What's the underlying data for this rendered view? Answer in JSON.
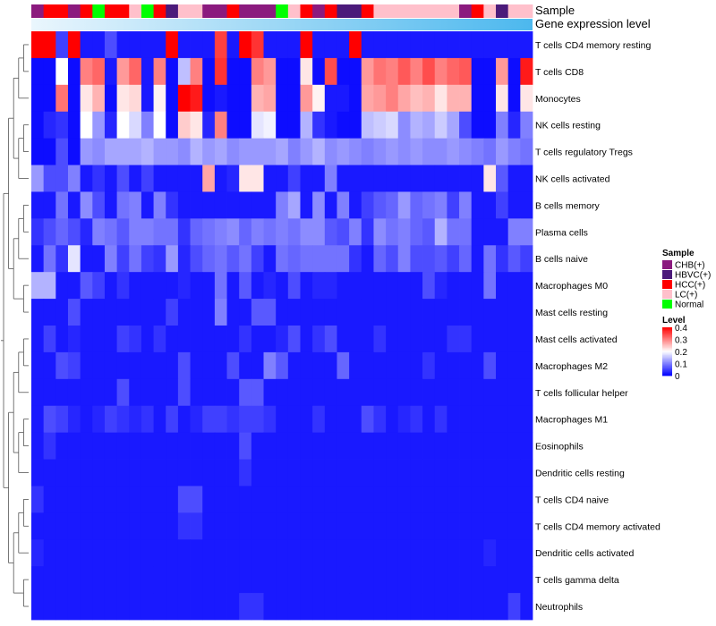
{
  "chart_data": {
    "type": "heatmap",
    "title": "",
    "annotation_tracks": [
      "Sample",
      "Gene expression level"
    ],
    "sample_groups": [
      "CHB(+)",
      "HBVC(+)",
      "HCC(+)",
      "LC(+)",
      "Normal"
    ],
    "group_colors": {
      "CHB(+)": "#8B1A7E",
      "HBVC(+)": "#4B1A7A",
      "HCC(+)": "#FF0000",
      "LC(+)": "#FFC0CB",
      "Normal": "#00FF00"
    },
    "sample_annotation": [
      "CHB(+)",
      "HCC(+)",
      "HCC(+)",
      "CHB(+)",
      "HCC(+)",
      "Normal",
      "HCC(+)",
      "HCC(+)",
      "LC(+)",
      "Normal",
      "HCC(+)",
      "HBVC(+)",
      "LC(+)",
      "LC(+)",
      "CHB(+)",
      "CHB(+)",
      "HCC(+)",
      "CHB(+)",
      "CHB(+)",
      "CHB(+)",
      "Normal",
      "LC(+)",
      "HCC(+)",
      "CHB(+)",
      "HCC(+)",
      "HBVC(+)",
      "HBVC(+)",
      "HCC(+)",
      "LC(+)",
      "LC(+)",
      "LC(+)",
      "LC(+)",
      "LC(+)",
      "LC(+)",
      "LC(+)",
      "CHB(+)",
      "HCC(+)",
      "LC(+)",
      "HBVC(+)",
      "LC(+)",
      "LC(+)"
    ],
    "rows": [
      "T cells CD4 memory resting",
      "T cells CD8",
      "Monocytes",
      "NK cells resting",
      "T cells regulatory  Tregs",
      "NK cells activated",
      "B cells memory",
      "Plasma cells",
      "B cells naive",
      "Macrophages M0",
      "Mast cells resting",
      "Mast cells activated",
      "Macrophages M2",
      "T cells follicular helper",
      "Macrophages M1",
      "Eosinophils",
      "Dendritic cells resting",
      "T cells CD4 naive",
      "T cells CD4 memory activated",
      "Dendritic cells activated",
      "T cells gamma delta",
      "Neutrophils"
    ],
    "values": [
      [
        0.42,
        0.42,
        0.05,
        0.43,
        0.02,
        0.02,
        0.06,
        0.02,
        0.02,
        0.02,
        0.02,
        0.43,
        0.02,
        0.02,
        0.02,
        0.35,
        0.02,
        0.43,
        0.36,
        0.02,
        0.02,
        0.02,
        0.43,
        0.02,
        0.02,
        0.02,
        0.43,
        0.02,
        0.02,
        0.02,
        0.02,
        0.02,
        0.02,
        0.02,
        0.02,
        0.02,
        0.02,
        0.02,
        0.02,
        0.02,
        0.02
      ],
      [
        0.01,
        0.01,
        0.2,
        0.01,
        0.3,
        0.32,
        0.02,
        0.28,
        0.32,
        0.02,
        0.3,
        0.01,
        0.15,
        0.3,
        0.01,
        0.36,
        0.01,
        0.01,
        0.3,
        0.28,
        0.01,
        0.01,
        0.22,
        0.01,
        0.34,
        0.01,
        0.01,
        0.28,
        0.31,
        0.3,
        0.33,
        0.3,
        0.34,
        0.3,
        0.32,
        0.33,
        0.01,
        0.01,
        0.28,
        0.01,
        0.38
      ],
      [
        0.01,
        0.01,
        0.31,
        0.01,
        0.22,
        0.26,
        0.01,
        0.22,
        0.23,
        0.02,
        0.21,
        0.01,
        0.42,
        0.38,
        0.01,
        0.02,
        0.01,
        0.01,
        0.26,
        0.27,
        0.01,
        0.01,
        0.28,
        0.21,
        0.02,
        0.02,
        0.01,
        0.27,
        0.28,
        0.3,
        0.27,
        0.25,
        0.26,
        0.22,
        0.26,
        0.26,
        0.01,
        0.01,
        0.22,
        0.01,
        0.22
      ],
      [
        0.01,
        0.03,
        0.04,
        0.01,
        0.2,
        0.12,
        0.03,
        0.2,
        0.17,
        0.1,
        0.2,
        0.01,
        0.24,
        0.22,
        0.03,
        0.3,
        0.01,
        0.01,
        0.18,
        0.19,
        0.01,
        0.01,
        0.14,
        0.04,
        0.02,
        0.01,
        0.01,
        0.15,
        0.16,
        0.17,
        0.11,
        0.14,
        0.13,
        0.16,
        0.13,
        0.06,
        0.01,
        0.01,
        0.1,
        0.03,
        0.1
      ],
      [
        0.01,
        0.01,
        0.06,
        0.01,
        0.12,
        0.11,
        0.13,
        0.13,
        0.13,
        0.14,
        0.12,
        0.12,
        0.11,
        0.14,
        0.12,
        0.13,
        0.11,
        0.12,
        0.12,
        0.12,
        0.13,
        0.1,
        0.12,
        0.14,
        0.11,
        0.12,
        0.11,
        0.1,
        0.11,
        0.12,
        0.11,
        0.12,
        0.11,
        0.11,
        0.12,
        0.11,
        0.1,
        0.09,
        0.12,
        0.1,
        0.09
      ],
      [
        0.12,
        0.06,
        0.06,
        0.1,
        0.02,
        0.04,
        0.02,
        0.06,
        0.02,
        0.05,
        0.02,
        0.02,
        0.02,
        0.02,
        0.27,
        0.02,
        0.03,
        0.22,
        0.22,
        0.02,
        0.02,
        0.05,
        0.02,
        0.02,
        0.1,
        0.02,
        0.02,
        0.02,
        0.02,
        0.02,
        0.02,
        0.02,
        0.02,
        0.02,
        0.02,
        0.02,
        0.02,
        0.22,
        0.07,
        0.02,
        0.02
      ],
      [
        0.02,
        0.02,
        0.09,
        0.02,
        0.11,
        0.06,
        0.02,
        0.09,
        0.1,
        0.02,
        0.1,
        0.04,
        0.02,
        0.02,
        0.02,
        0.02,
        0.02,
        0.02,
        0.02,
        0.02,
        0.1,
        0.13,
        0.02,
        0.11,
        0.02,
        0.1,
        0.02,
        0.05,
        0.07,
        0.08,
        0.12,
        0.08,
        0.09,
        0.1,
        0.05,
        0.1,
        0.02,
        0.02,
        0.05,
        0.02,
        0.02
      ],
      [
        0.04,
        0.06,
        0.08,
        0.06,
        0.03,
        0.1,
        0.09,
        0.07,
        0.1,
        0.1,
        0.09,
        0.09,
        0.04,
        0.08,
        0.09,
        0.1,
        0.11,
        0.08,
        0.1,
        0.09,
        0.1,
        0.09,
        0.11,
        0.11,
        0.07,
        0.06,
        0.1,
        0.04,
        0.11,
        0.09,
        0.1,
        0.08,
        0.07,
        0.14,
        0.09,
        0.09,
        0.02,
        0.02,
        0.02,
        0.1,
        0.1
      ],
      [
        0.02,
        0.09,
        0.04,
        0.18,
        0.02,
        0.02,
        0.1,
        0.05,
        0.09,
        0.05,
        0.04,
        0.12,
        0.03,
        0.06,
        0.08,
        0.09,
        0.07,
        0.09,
        0.05,
        0.02,
        0.09,
        0.08,
        0.09,
        0.09,
        0.09,
        0.09,
        0.04,
        0.02,
        0.08,
        0.06,
        0.1,
        0.06,
        0.06,
        0.07,
        0.05,
        0.08,
        0.02,
        0.09,
        0.04,
        0.07,
        0.05
      ],
      [
        0.14,
        0.14,
        0.02,
        0.02,
        0.07,
        0.05,
        0.02,
        0.04,
        0.02,
        0.02,
        0.02,
        0.02,
        0.03,
        0.02,
        0.02,
        0.09,
        0.02,
        0.07,
        0.02,
        0.03,
        0.02,
        0.06,
        0.02,
        0.03,
        0.03,
        0.02,
        0.02,
        0.02,
        0.02,
        0.02,
        0.02,
        0.02,
        0.06,
        0.03,
        0.02,
        0.02,
        0.02,
        0.09,
        0.02,
        0.02,
        0.02
      ],
      [
        0.02,
        0.02,
        0.02,
        0.06,
        0.02,
        0.02,
        0.02,
        0.02,
        0.02,
        0.02,
        0.02,
        0.05,
        0.02,
        0.02,
        0.02,
        0.1,
        0.02,
        0.02,
        0.07,
        0.07,
        0.02,
        0.02,
        0.02,
        0.02,
        0.02,
        0.02,
        0.02,
        0.02,
        0.02,
        0.02,
        0.02,
        0.02,
        0.02,
        0.02,
        0.02,
        0.02,
        0.02,
        0.02,
        0.02,
        0.02,
        0.02
      ],
      [
        0.02,
        0.05,
        0.02,
        0.03,
        0.02,
        0.02,
        0.02,
        0.05,
        0.04,
        0.02,
        0.04,
        0.02,
        0.02,
        0.02,
        0.02,
        0.02,
        0.02,
        0.04,
        0.02,
        0.02,
        0.03,
        0.06,
        0.02,
        0.04,
        0.06,
        0.02,
        0.02,
        0.02,
        0.04,
        0.02,
        0.02,
        0.02,
        0.02,
        0.02,
        0.04,
        0.04,
        0.02,
        0.02,
        0.02,
        0.02,
        0.02
      ],
      [
        0.02,
        0.02,
        0.06,
        0.05,
        0.02,
        0.02,
        0.02,
        0.02,
        0.02,
        0.02,
        0.02,
        0.02,
        0.06,
        0.02,
        0.02,
        0.02,
        0.06,
        0.02,
        0.02,
        0.1,
        0.07,
        0.02,
        0.02,
        0.02,
        0.02,
        0.08,
        0.02,
        0.02,
        0.02,
        0.02,
        0.02,
        0.02,
        0.04,
        0.02,
        0.02,
        0.02,
        0.02,
        0.06,
        0.02,
        0.02,
        0.02
      ],
      [
        0.02,
        0.02,
        0.02,
        0.02,
        0.02,
        0.02,
        0.02,
        0.06,
        0.02,
        0.02,
        0.02,
        0.02,
        0.06,
        0.02,
        0.02,
        0.02,
        0.02,
        0.07,
        0.07,
        0.02,
        0.02,
        0.02,
        0.02,
        0.02,
        0.02,
        0.02,
        0.02,
        0.02,
        0.02,
        0.02,
        0.02,
        0.02,
        0.02,
        0.02,
        0.02,
        0.02,
        0.02,
        0.02,
        0.02,
        0.02,
        0.02
      ],
      [
        0.02,
        0.06,
        0.05,
        0.03,
        0.02,
        0.03,
        0.05,
        0.04,
        0.03,
        0.04,
        0.02,
        0.05,
        0.02,
        0.03,
        0.05,
        0.05,
        0.04,
        0.05,
        0.05,
        0.04,
        0.02,
        0.02,
        0.02,
        0.04,
        0.02,
        0.02,
        0.02,
        0.06,
        0.04,
        0.02,
        0.03,
        0.04,
        0.02,
        0.04,
        0.02,
        0.02,
        0.02,
        0.02,
        0.02,
        0.02,
        0.02
      ],
      [
        0.02,
        0.04,
        0.02,
        0.02,
        0.02,
        0.02,
        0.02,
        0.02,
        0.02,
        0.02,
        0.02,
        0.02,
        0.02,
        0.02,
        0.02,
        0.02,
        0.02,
        0.06,
        0.02,
        0.02,
        0.02,
        0.02,
        0.02,
        0.02,
        0.02,
        0.02,
        0.02,
        0.02,
        0.02,
        0.02,
        0.02,
        0.02,
        0.02,
        0.02,
        0.02,
        0.02,
        0.02,
        0.02,
        0.02,
        0.02,
        0.02
      ],
      [
        0.02,
        0.02,
        0.02,
        0.02,
        0.02,
        0.02,
        0.02,
        0.02,
        0.02,
        0.02,
        0.02,
        0.02,
        0.02,
        0.02,
        0.02,
        0.02,
        0.02,
        0.04,
        0.02,
        0.02,
        0.02,
        0.02,
        0.02,
        0.02,
        0.02,
        0.02,
        0.02,
        0.02,
        0.02,
        0.02,
        0.02,
        0.02,
        0.02,
        0.02,
        0.02,
        0.02,
        0.02,
        0.02,
        0.02,
        0.02,
        0.02
      ],
      [
        0.04,
        0.02,
        0.02,
        0.02,
        0.02,
        0.02,
        0.02,
        0.02,
        0.02,
        0.02,
        0.02,
        0.02,
        0.06,
        0.06,
        0.02,
        0.02,
        0.02,
        0.02,
        0.02,
        0.02,
        0.02,
        0.02,
        0.02,
        0.02,
        0.02,
        0.02,
        0.02,
        0.02,
        0.02,
        0.02,
        0.02,
        0.02,
        0.02,
        0.02,
        0.02,
        0.02,
        0.02,
        0.02,
        0.02,
        0.02,
        0.02
      ],
      [
        0.02,
        0.02,
        0.02,
        0.02,
        0.02,
        0.02,
        0.02,
        0.02,
        0.02,
        0.02,
        0.02,
        0.02,
        0.04,
        0.04,
        0.02,
        0.02,
        0.02,
        0.02,
        0.02,
        0.02,
        0.02,
        0.02,
        0.02,
        0.02,
        0.02,
        0.02,
        0.02,
        0.02,
        0.02,
        0.02,
        0.02,
        0.02,
        0.02,
        0.02,
        0.02,
        0.02,
        0.02,
        0.02,
        0.02,
        0.02,
        0.02
      ],
      [
        0.03,
        0.02,
        0.02,
        0.02,
        0.02,
        0.02,
        0.02,
        0.02,
        0.02,
        0.02,
        0.02,
        0.02,
        0.02,
        0.02,
        0.02,
        0.02,
        0.02,
        0.02,
        0.02,
        0.02,
        0.02,
        0.02,
        0.02,
        0.02,
        0.02,
        0.02,
        0.02,
        0.02,
        0.02,
        0.02,
        0.02,
        0.02,
        0.02,
        0.02,
        0.02,
        0.02,
        0.02,
        0.03,
        0.02,
        0.02,
        0.02
      ],
      [
        0.02,
        0.02,
        0.02,
        0.02,
        0.02,
        0.02,
        0.02,
        0.02,
        0.02,
        0.02,
        0.02,
        0.02,
        0.02,
        0.02,
        0.02,
        0.02,
        0.02,
        0.02,
        0.02,
        0.02,
        0.02,
        0.02,
        0.02,
        0.02,
        0.02,
        0.02,
        0.02,
        0.02,
        0.02,
        0.02,
        0.02,
        0.02,
        0.02,
        0.02,
        0.02,
        0.02,
        0.02,
        0.02,
        0.02,
        0.02,
        0.02
      ],
      [
        0.02,
        0.02,
        0.02,
        0.02,
        0.02,
        0.02,
        0.02,
        0.02,
        0.02,
        0.02,
        0.02,
        0.02,
        0.02,
        0.02,
        0.02,
        0.02,
        0.02,
        0.04,
        0.04,
        0.02,
        0.02,
        0.02,
        0.02,
        0.02,
        0.02,
        0.02,
        0.02,
        0.02,
        0.02,
        0.02,
        0.02,
        0.02,
        0.02,
        0.02,
        0.02,
        0.02,
        0.02,
        0.02,
        0.02,
        0.05,
        0.02
      ]
    ],
    "color_scale": {
      "min": 0,
      "max": 0.4,
      "colors": [
        "#0000FF",
        "#FFFFFF",
        "#FF0000"
      ]
    },
    "legend": {
      "sample_title": "Sample",
      "level_title": "Level",
      "level_ticks": [
        0.4,
        0.3,
        0.2,
        0.1,
        0
      ],
      "placement": "right"
    },
    "dendrogram": "rows"
  }
}
